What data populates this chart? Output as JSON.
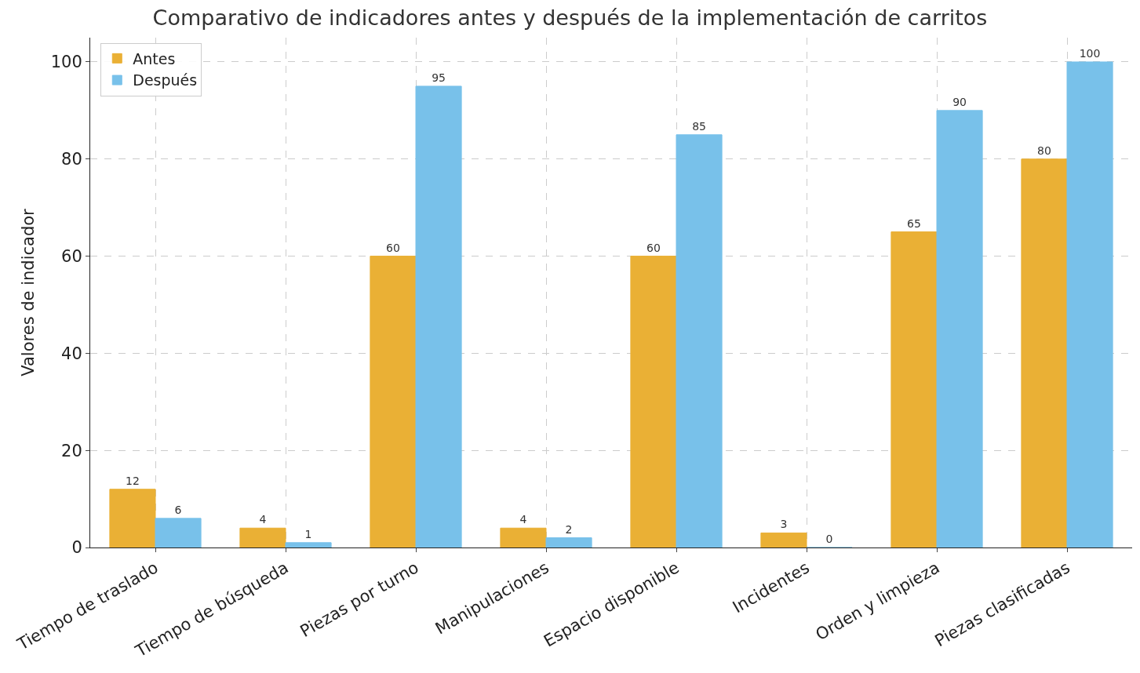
{
  "chart_data": {
    "type": "bar",
    "title": "Comparativo de indicadores antes y después de la implementación de carritos",
    "ylabel": "Valores de indicador",
    "categories": [
      "Tiempo de traslado",
      "Tiempo de búsqueda",
      "Piezas por turno",
      "Manipulaciones",
      "Espacio disponible",
      "Incidentes",
      "Orden y limpieza",
      "Piezas clasificadas"
    ],
    "series": [
      {
        "name": "Antes",
        "color": "#eab035",
        "values": [
          12,
          4,
          60,
          4,
          60,
          3,
          65,
          80
        ]
      },
      {
        "name": "Después",
        "color": "#78c1ea",
        "values": [
          6,
          1,
          95,
          2,
          85,
          0,
          90,
          100
        ]
      }
    ],
    "ylim": [
      0,
      105
    ],
    "yticks": [
      0,
      20,
      40,
      60,
      80,
      100
    ],
    "grid": true,
    "legend": "top left",
    "data_labels": true
  }
}
